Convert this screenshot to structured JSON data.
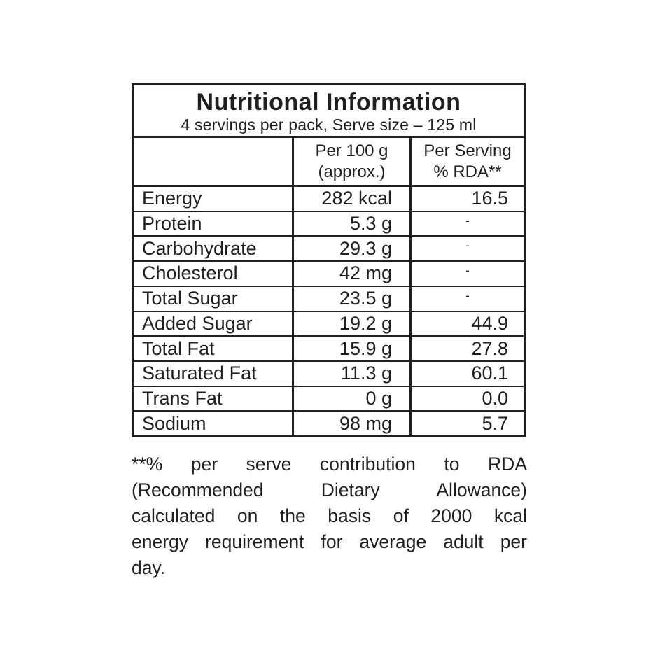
{
  "colors": {
    "ink": "#1f1f1f",
    "background": "#ffffff"
  },
  "panel": {
    "title": "Nutritional Information",
    "subtitle": "4 servings per pack, Serve size – 125 ml",
    "columns": {
      "nutrient": "",
      "per100_line1": "Per 100 g",
      "per100_line2": "(approx.)",
      "rda_line1": "Per Serving",
      "rda_line2": "% RDA**"
    },
    "rows": [
      {
        "label": "Energy",
        "per100": "282 kcal",
        "rda": "16.5"
      },
      {
        "label": "Protein",
        "per100": "5.3 g",
        "rda": "-"
      },
      {
        "label": "Carbohydrate",
        "per100": "29.3 g",
        "rda": "-"
      },
      {
        "label": "Cholesterol",
        "per100": "42 mg",
        "rda": "-"
      },
      {
        "label": "Total Sugar",
        "per100": "23.5 g",
        "rda": "-"
      },
      {
        "label": "Added Sugar",
        "per100": "19.2 g",
        "rda": "44.9"
      },
      {
        "label": "Total Fat",
        "per100": "15.9 g",
        "rda": "27.8"
      },
      {
        "label": "Saturated Fat",
        "per100": "11.3 g",
        "rda": "60.1"
      },
      {
        "label": "Trans Fat",
        "per100": "0 g",
        "rda": "0.0"
      },
      {
        "label": "Sodium",
        "per100": "98 mg",
        "rda": "5.7"
      }
    ]
  },
  "footnote": {
    "lines": [
      "**% per serve contribution to RDA",
      "(Recommended Dietary Allowance)",
      "calculated on the basis of 2000 kcal",
      "energy requirement for average adult per",
      "day."
    ]
  }
}
